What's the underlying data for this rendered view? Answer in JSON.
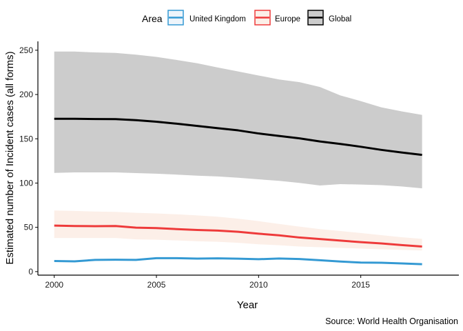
{
  "chart_data": {
    "type": "line",
    "title": "",
    "xlabel": "Year",
    "ylabel": "Estimated number of Incident cases (all forms)",
    "caption": "Source: World Health Organisation",
    "xlim": [
      1999.2,
      2019.8
    ],
    "ylim": [
      -4,
      260
    ],
    "xticks": [
      2000,
      2005,
      2010,
      2015
    ],
    "yticks": [
      0,
      50,
      100,
      150,
      200,
      250
    ],
    "grid": false,
    "legend": {
      "title": "Area",
      "position": "top",
      "entries": [
        "United Kingdom",
        "Europe",
        "Global"
      ]
    },
    "x": [
      2000,
      2001,
      2002,
      2003,
      2004,
      2005,
      2006,
      2007,
      2008,
      2009,
      2010,
      2011,
      2012,
      2013,
      2014,
      2015,
      2016,
      2017,
      2018
    ],
    "series": [
      {
        "name": "Global",
        "color": "#000000",
        "fill": "#cccccc",
        "values": [
          172.6,
          172.6,
          172.3,
          172.2,
          171,
          169.3,
          167,
          164.5,
          162,
          159.5,
          156,
          153.2,
          150.5,
          147,
          144.2,
          141,
          137.5,
          134.5,
          131.8
        ],
        "lower": [
          111.5,
          112,
          112,
          112,
          111.3,
          110.6,
          109.5,
          108.3,
          107.5,
          106,
          104.2,
          102.5,
          100.2,
          97.2,
          98.8,
          98.3,
          97.6,
          96.2,
          94
        ],
        "upper": [
          248.5,
          248.5,
          247.5,
          247,
          245,
          242.5,
          239,
          235.3,
          230.5,
          226,
          221.5,
          217,
          214,
          208.5,
          199,
          192.5,
          185.5,
          181,
          177
        ]
      },
      {
        "name": "Europe",
        "color": "#ee3a3a",
        "fill": "#fcefe8",
        "values": [
          52,
          51.5,
          51.3,
          51.5,
          49.6,
          49.2,
          48,
          47,
          46.3,
          45,
          42.8,
          41,
          38.5,
          36.8,
          35,
          33.3,
          31.8,
          30,
          28.3
        ],
        "lower": [
          38,
          38,
          38,
          38,
          36.4,
          36,
          35.2,
          34.3,
          33.7,
          32.5,
          30.8,
          29.8,
          28.3,
          27.5,
          26.8,
          26,
          25.2,
          24.5,
          23.8
        ],
        "upper": [
          69,
          68.5,
          67.8,
          67.5,
          66.4,
          65.7,
          64.7,
          63.5,
          62,
          59.8,
          57,
          53.8,
          50.8,
          48,
          45.8,
          43.6,
          41.2,
          38.8,
          37
        ]
      },
      {
        "name": "United Kingdom",
        "color": "#3399d3",
        "fill": "#eef5fb",
        "values": [
          12,
          11.6,
          13.2,
          13.4,
          13.2,
          15.2,
          15.2,
          14.7,
          15,
          14.6,
          14,
          14.8,
          14.2,
          12.8,
          11.4,
          10.2,
          10,
          9.2,
          8.4
        ],
        "lower": null,
        "upper": null
      }
    ]
  }
}
